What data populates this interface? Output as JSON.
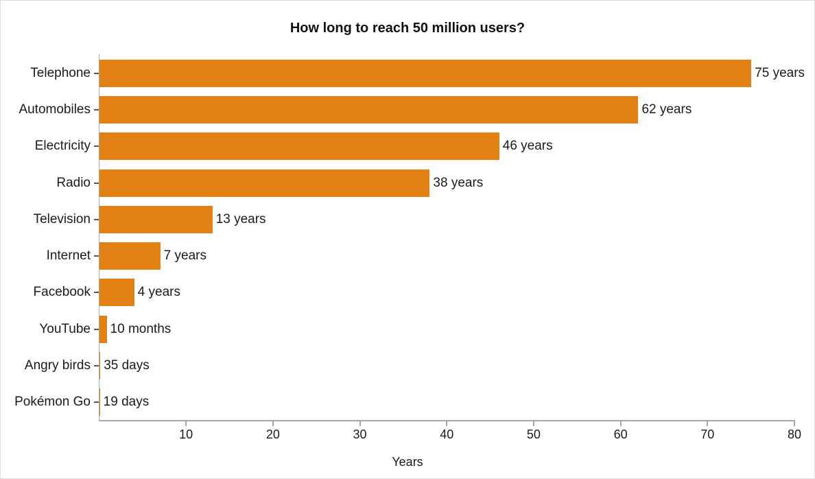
{
  "chart_data": {
    "type": "bar",
    "orientation": "horizontal",
    "title": "How long to reach 50 million users?",
    "xlabel": "Years",
    "categories": [
      "Telephone",
      "Automobiles",
      "Electricity",
      "Radio",
      "Television",
      "Internet",
      "Facebook",
      "YouTube",
      "Angry birds",
      "Pokémon Go"
    ],
    "values_years": [
      75,
      62,
      46,
      38,
      13,
      7,
      4,
      0.833,
      0.096,
      0.052
    ],
    "value_labels": [
      "75 years",
      "62 years",
      "46 years",
      "38 years",
      "13 years",
      "7 years",
      "4 years",
      "10 months",
      "35 days",
      "19 days"
    ],
    "xlim": [
      0,
      80
    ],
    "xticks": [
      10,
      20,
      30,
      40,
      50,
      60,
      70,
      80
    ],
    "grid": false,
    "legend": "none",
    "colors": {
      "bar": "#E28114",
      "axis": "#A6A6A6",
      "y_tick": "#595959",
      "text": "#1A1A1A"
    }
  }
}
